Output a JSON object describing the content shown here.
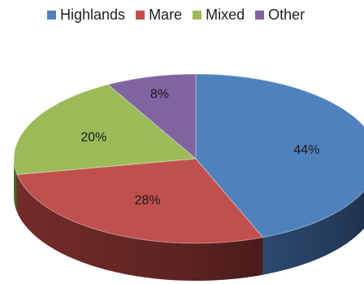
{
  "chart_data": {
    "type": "pie",
    "style": "3d",
    "legend_position": "top",
    "categories": [
      "Highlands",
      "Mare",
      "Mixed",
      "Other"
    ],
    "values": [
      44,
      28,
      20,
      8
    ],
    "value_labels": [
      "44%",
      "28%",
      "20%",
      "8%"
    ],
    "colors": [
      "#4F81BD",
      "#C0504D",
      "#9BBB59",
      "#8064A2"
    ],
    "dark_colors": [
      "#2E4D75",
      "#7A2E2C",
      "#5E7A34",
      "#4E3C66"
    ]
  }
}
